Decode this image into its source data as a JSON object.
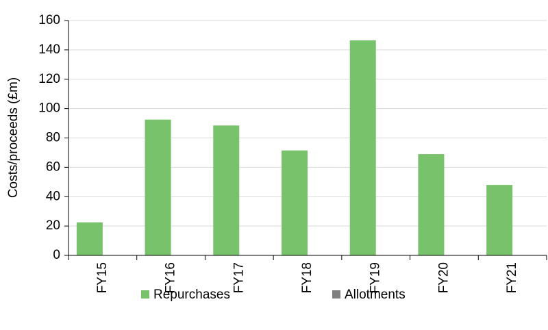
{
  "chart_data": {
    "type": "bar",
    "y_label": "Costs/proceeds (£m)",
    "categories": [
      "FY15",
      "FY16",
      "FY17",
      "FY18",
      "FY19",
      "FY20",
      "FY21"
    ],
    "series": [
      {
        "name": "Repurchases",
        "color": "#77c26a",
        "values": [
          22.5,
          92.5,
          88.5,
          71.5,
          146.5,
          69,
          48
        ]
      },
      {
        "name": "Allotments",
        "color": "#7f7f7f",
        "values": [
          0,
          0,
          0,
          0,
          0,
          0,
          0
        ]
      }
    ],
    "ylim": [
      0,
      160
    ],
    "yticks": [
      0,
      20,
      40,
      60,
      80,
      100,
      120,
      140,
      160
    ],
    "grid": true
  }
}
